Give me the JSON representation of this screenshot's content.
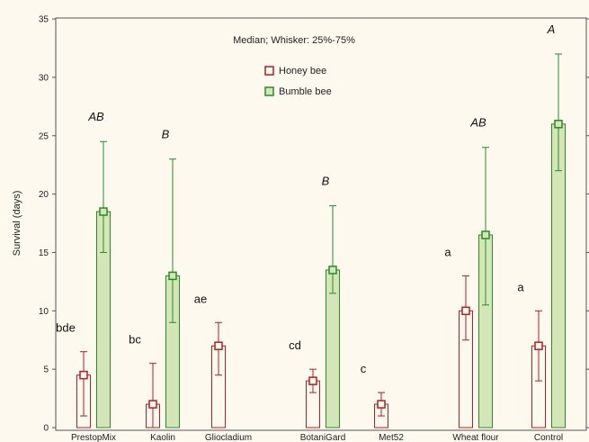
{
  "chart_data": {
    "type": "bar",
    "subtitle": "Median; Whisker: 25%-75%",
    "ylabel": "Survival (days)",
    "xlabel": "",
    "ylim": [
      0,
      35
    ],
    "yticks": [
      0,
      5,
      10,
      15,
      20,
      25,
      30,
      35
    ],
    "categories": [
      "PrestopMix",
      "Kaolin",
      "Gliocladium",
      "BotaniGard",
      "Met52",
      "Wheat flour",
      "Control"
    ],
    "legend_position": "top-center",
    "grid": false,
    "series": [
      {
        "name": "Honey  bee",
        "color": "#b02020",
        "fill": "#fdf9ef",
        "median": [
          4.5,
          2,
          7,
          4,
          2,
          10,
          7
        ],
        "q25": [
          1,
          0,
          4.5,
          3,
          1,
          7.5,
          4
        ],
        "q75": [
          6.5,
          5.5,
          9,
          5,
          3,
          13,
          10
        ],
        "letters": [
          "bde",
          "bc",
          "ae",
          "cd",
          "c",
          "a",
          "a"
        ]
      },
      {
        "name": "Bumble bee",
        "color": "#2a8a2a",
        "fill": "#d4e5b8",
        "median": [
          18.5,
          13,
          null,
          13.5,
          null,
          16.5,
          26
        ],
        "q25": [
          15,
          9,
          null,
          11.5,
          null,
          10.5,
          22
        ],
        "q75": [
          24.5,
          23,
          null,
          19,
          null,
          24,
          32
        ],
        "letters": [
          "AB",
          "B",
          "",
          "B",
          "",
          "AB",
          "A"
        ]
      }
    ]
  }
}
